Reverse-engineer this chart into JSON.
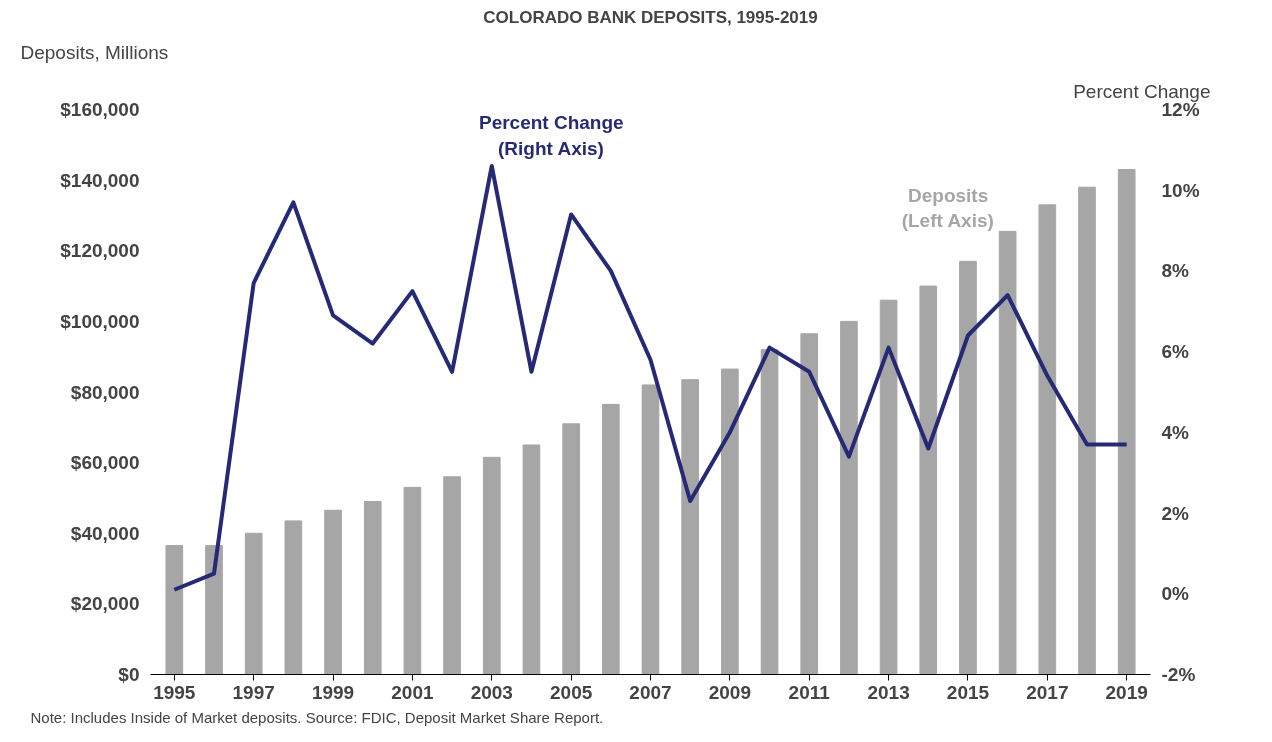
{
  "chart_data": {
    "type": "bar",
    "title": "COLORADO BANK DEPOSITS, 1995-2019",
    "ylabel": "Deposits, Millions",
    "y2label": "Percent Change",
    "x": [
      1995,
      1996,
      1997,
      1998,
      1999,
      2000,
      2001,
      2002,
      2003,
      2004,
      2005,
      2006,
      2007,
      2008,
      2009,
      2010,
      2011,
      2012,
      2013,
      2014,
      2015,
      2016,
      2017,
      2018,
      2019
    ],
    "series": [
      {
        "name": "Deposits\n(Left Axis)",
        "color": "#a6a6a6",
        "values": [
          36500,
          36500,
          40000,
          43500,
          46500,
          49000,
          53000,
          56000,
          61500,
          65000,
          71000,
          76500,
          82000,
          83500,
          86500,
          92000,
          96500,
          100000,
          106000,
          110000,
          117000,
          125500,
          133000,
          138000,
          143000
        ]
      },
      {
        "name": "Percent Change\n(Right Axis)",
        "type": "line",
        "axis": "y2",
        "color": "#262a76",
        "values": [
          0.1,
          0.5,
          7.7,
          9.7,
          6.9,
          6.2,
          7.5,
          5.5,
          10.6,
          5.5,
          9.4,
          8.0,
          5.8,
          2.3,
          4.0,
          6.1,
          5.5,
          3.4,
          6.1,
          3.6,
          6.4,
          7.4,
          5.4,
          3.7,
          3.7
        ]
      }
    ],
    "xlim": [
      1994.4,
      2019.6
    ],
    "xticks": [
      1995,
      1997,
      1999,
      2001,
      2003,
      2005,
      2007,
      2009,
      2011,
      2013,
      2015,
      2017,
      2019
    ],
    "ylim": [
      0,
      160000
    ],
    "yticks": [
      {
        "value": 0,
        "label": "$0"
      },
      {
        "value": 20000,
        "label": "$20,000"
      },
      {
        "value": 40000,
        "label": "$40,000"
      },
      {
        "value": 60000,
        "label": "$60,000"
      },
      {
        "value": 80000,
        "label": "$80,000"
      },
      {
        "value": 100000,
        "label": "$100,000"
      },
      {
        "value": 120000,
        "label": "$120,000"
      },
      {
        "value": 140000,
        "label": "$140,000"
      },
      {
        "value": 160000,
        "label": "$160,000"
      }
    ],
    "y2lim": [
      -2,
      12
    ],
    "y2ticks": [
      {
        "value": -2,
        "label": "-2%"
      },
      {
        "value": 0,
        "label": "0%"
      },
      {
        "value": 2,
        "label": "2%"
      },
      {
        "value": 4,
        "label": "4%"
      },
      {
        "value": 6,
        "label": "6%"
      },
      {
        "value": 8,
        "label": "8%"
      },
      {
        "value": 10,
        "label": "10%"
      },
      {
        "value": 12,
        "label": "12%"
      }
    ],
    "grid": false,
    "annotations": [
      "Note: Includes Inside of Market deposits. Source: FDIC, Deposit Market Share Report."
    ]
  }
}
